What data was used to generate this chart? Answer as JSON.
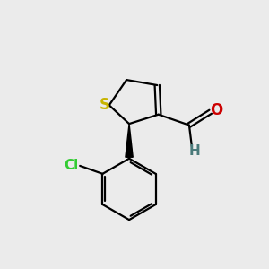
{
  "bg_color": "#ebebeb",
  "atom_colors": {
    "S": "#c8b400",
    "O": "#cc0000",
    "Cl": "#33cc33",
    "C": "#000000",
    "H": "#4a7a7a"
  },
  "bond_color": "#000000",
  "bond_width": 1.6,
  "figsize": [
    3.0,
    3.0
  ],
  "dpi": 100
}
